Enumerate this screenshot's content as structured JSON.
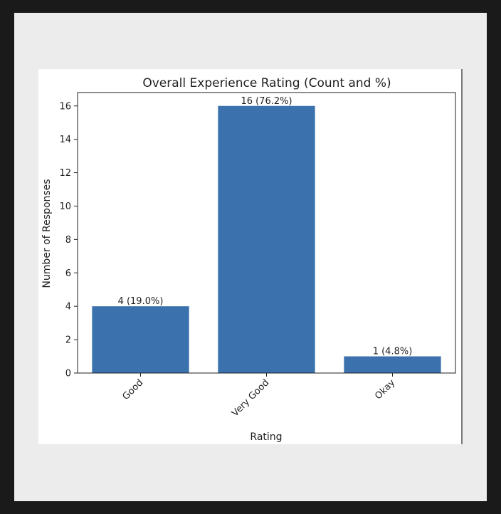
{
  "chart_data": {
    "type": "bar",
    "title": "Overall Experience Rating (Count and %)",
    "xlabel": "Rating",
    "ylabel": "Number of Responses",
    "categories": [
      "Good",
      "Very Good",
      "Okay"
    ],
    "values": [
      4,
      16,
      1
    ],
    "data_labels": [
      "4 (19.0%)",
      "16 (76.2%)",
      "1 (4.8%)"
    ],
    "ylim": [
      0,
      16.8
    ],
    "yticks": [
      0,
      2,
      4,
      6,
      8,
      10,
      12,
      14,
      16
    ],
    "grid": false,
    "bar_color": "#3b72ad"
  }
}
